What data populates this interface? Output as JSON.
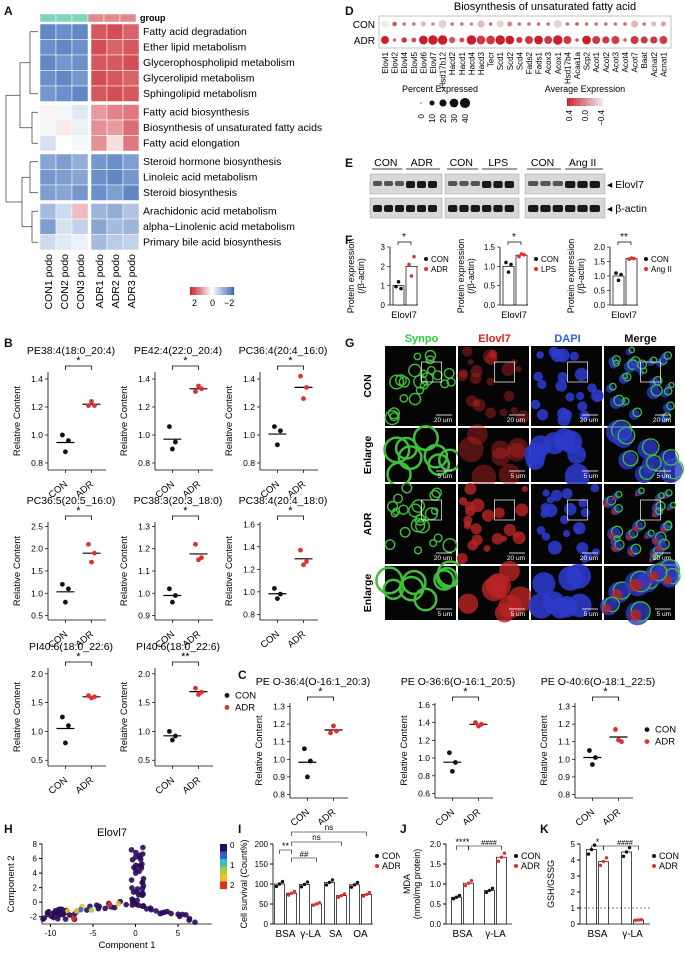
{
  "panel_letters": {
    "A": "A",
    "B": "B",
    "C": "C",
    "D": "D",
    "E": "E",
    "F": "F",
    "G": "G",
    "H": "H",
    "I": "I",
    "J": "J",
    "K": "K"
  },
  "panelA": {
    "group_label": "group",
    "columns": [
      "CON1 podo",
      "CON2 podo",
      "CON3 podo",
      "ADR1 podo",
      "ADR2 podo",
      "ADR3 podo"
    ],
    "rows": [
      "Fatty acid degradation",
      "Ether lipid metabolism",
      "Glycerophospholipid metabolism",
      "Glycerolipid metabolism",
      "Sphingolipid metabolism",
      "Fatty acid biosynthesis",
      "Biosynthesis of unsaturated fatty acids",
      "Fatty acid elongation",
      "Steroid hormone biosynthesis",
      "Linoleic acid metabolism",
      "Steroid biosynthesis",
      "Arachidonic acid metabolism",
      "alpha−Linolenic acid metabolism",
      "Primary bile acid biosynthesis"
    ],
    "values": [
      [
        -1.6,
        -1.5,
        -1.6,
        1.5,
        1.6,
        1.4
      ],
      [
        -1.5,
        -1.6,
        -1.5,
        1.6,
        1.4,
        1.5
      ],
      [
        -1.6,
        -1.4,
        -1.5,
        1.5,
        1.5,
        1.6
      ],
      [
        -1.5,
        -1.6,
        -1.4,
        1.6,
        1.5,
        1.4
      ],
      [
        -1.4,
        -1.5,
        -1.6,
        1.5,
        1.6,
        1.5
      ],
      [
        0.1,
        -0.1,
        -0.3,
        0.9,
        1.1,
        1.2
      ],
      [
        -0.1,
        0.2,
        -0.2,
        1.0,
        0.9,
        1.3
      ],
      [
        -0.4,
        0.0,
        -0.1,
        1.0,
        0.3,
        1.2
      ],
      [
        -1.2,
        -1.3,
        -1.1,
        -1.4,
        -1.5,
        -1.3
      ],
      [
        -1.4,
        -1.3,
        -1.2,
        -1.5,
        -1.6,
        -1.4
      ],
      [
        -1.3,
        -1.2,
        -1.4,
        -1.5,
        -1.3,
        -1.6
      ],
      [
        -0.9,
        -0.5,
        0.6,
        -1.0,
        -1.1,
        -0.8
      ],
      [
        -1.3,
        -0.4,
        -0.6,
        -1.2,
        -0.9,
        -1.0
      ],
      [
        -0.5,
        -0.3,
        -0.2,
        -0.9,
        -0.7,
        -0.6
      ]
    ],
    "legend": {
      "max": "2",
      "mid": "0",
      "min": "−2"
    },
    "colors": {
      "con_group": "#7fd6bd",
      "adr_group": "#e08b8b",
      "high": "#c8202a",
      "low": "#3a6ab5"
    }
  },
  "panelB": {
    "ylabel": "Relative Content",
    "categories": [
      "CON",
      "ADR"
    ],
    "legend": [
      "CON",
      "ADR"
    ],
    "plots": [
      {
        "title": "PE38:4(18:0_20:4)",
        "sig": "*",
        "yticks": [
          "0.8",
          "1.0",
          "1.2",
          "1.4"
        ],
        "ylim": [
          0.75,
          1.45
        ],
        "con": [
          1.0,
          0.88,
          0.96
        ],
        "adr": [
          1.21,
          1.24,
          1.21
        ]
      },
      {
        "title": "PE42:4(22:0_20:4)",
        "sig": "*",
        "yticks": [
          "0.8",
          "1.0",
          "1.2",
          "1.4"
        ],
        "ylim": [
          0.75,
          1.45
        ],
        "con": [
          1.06,
          0.9,
          0.95
        ],
        "adr": [
          1.31,
          1.35,
          1.33
        ]
      },
      {
        "title": "PC36:4(20:4_16:0)",
        "sig": "*",
        "yticks": [
          "0.8",
          "1.0",
          "1.2",
          "1.4"
        ],
        "ylim": [
          0.75,
          1.45
        ],
        "con": [
          1.06,
          0.93,
          1.03
        ],
        "adr": [
          1.42,
          1.26,
          1.34
        ]
      },
      {
        "title": "PC36:5(20:5_16:0)",
        "sig": "*",
        "yticks": [
          "0.5",
          "1.0",
          "1.5",
          "2.0",
          "2.5"
        ],
        "ylim": [
          0.4,
          2.6
        ],
        "con": [
          1.2,
          0.8,
          1.1
        ],
        "adr": [
          2.1,
          1.7,
          1.9
        ]
      },
      {
        "title": "PC38:3(20:3_18:0)",
        "sig": "*",
        "yticks": [
          "0.9",
          "1.0",
          "1.1",
          "1.2",
          "1.3"
        ],
        "ylim": [
          0.88,
          1.32
        ],
        "con": [
          1.02,
          0.96,
          0.99
        ],
        "adr": [
          1.22,
          1.15,
          1.16
        ]
      },
      {
        "title": "PC38:4(20:4_18:0)",
        "sig": "*",
        "yticks": [
          "0.8",
          "1.0",
          "1.2",
          "1.4",
          "1.6"
        ],
        "ylim": [
          0.75,
          1.62
        ],
        "con": [
          1.03,
          0.94,
          0.98
        ],
        "adr": [
          1.37,
          1.24,
          1.27
        ]
      },
      {
        "title": "PI40:6(18:0_22:6)",
        "sig": "*",
        "yticks": [
          "0.5",
          "1.0",
          "1.5",
          "2.0"
        ],
        "ylim": [
          0.4,
          2.1
        ],
        "con": [
          1.25,
          0.8,
          1.1
        ],
        "adr": [
          1.62,
          1.58,
          1.6
        ]
      },
      {
        "title": "PI40:6(18:0_22:6)",
        "sig": "**",
        "yticks": [
          "0.5",
          "1.0",
          "1.5",
          "2.0"
        ],
        "ylim": [
          0.4,
          2.1
        ],
        "con": [
          1.0,
          0.85,
          0.92
        ],
        "adr": [
          1.75,
          1.64,
          1.68
        ]
      }
    ]
  },
  "panelC": {
    "plots": [
      {
        "title": "PE O-36:4(O-16:1_20:3)",
        "sig": "*",
        "yticks": [
          "0.8",
          "0.9",
          "1.0",
          "1.1",
          "1.2",
          "1.3"
        ],
        "ylim": [
          0.78,
          1.32
        ],
        "con": [
          1.06,
          0.9,
          0.99
        ],
        "adr": [
          1.15,
          1.19,
          1.16
        ]
      },
      {
        "title": "PE O-36:6(O-16:1_20:5)",
        "sig": "*",
        "yticks": [
          "0.6",
          "0.8",
          "1.0",
          "1.2",
          "1.4",
          "1.6"
        ],
        "ylim": [
          0.55,
          1.62
        ],
        "con": [
          1.06,
          0.85,
          0.95
        ],
        "adr": [
          1.4,
          1.36,
          1.38
        ]
      },
      {
        "title": "PE O-40:6(O-18:1_22:5)",
        "sig": "*",
        "yticks": [
          "0.8",
          "0.9",
          "1.0",
          "1.1",
          "1.2",
          "1.3"
        ],
        "ylim": [
          0.78,
          1.32
        ],
        "con": [
          1.05,
          0.97,
          1.01
        ],
        "adr": [
          1.17,
          1.11,
          1.1
        ]
      }
    ]
  },
  "panelD": {
    "title": "Biosynthesis of unsaturated fatty acid",
    "rows": [
      "CON",
      "ADR"
    ],
    "genes": [
      "Elovl1",
      "Elovl2",
      "Elovl4",
      "Elovl5",
      "Elovl6",
      "Elovl7",
      "Hsd17b12",
      "Hacd2",
      "Hacd1",
      "Hacd4",
      "Hacd3",
      "Tecr",
      "Scd1",
      "Scd2",
      "Scd4",
      "Fads2",
      "Fads1",
      "Acox3",
      "Acox1",
      "Hsd17b4",
      "Acaa1a",
      "Scp2",
      "Acot1",
      "Acot2",
      "Acot3",
      "Acot4",
      "Acot7",
      "Baat",
      "Acnat2",
      "Acnat1"
    ],
    "size_con": [
      20,
      8,
      5,
      5,
      10,
      5,
      25,
      5,
      5,
      5,
      20,
      5,
      20,
      10,
      5,
      5,
      5,
      5,
      25,
      5,
      5,
      5,
      5,
      5,
      5,
      5,
      20,
      5,
      10,
      10
    ],
    "size_adr": [
      25,
      5,
      12,
      10,
      30,
      35,
      35,
      15,
      10,
      35,
      30,
      30,
      35,
      30,
      15,
      25,
      30,
      25,
      35,
      25,
      5,
      30,
      25,
      20,
      25,
      5,
      25,
      20,
      20,
      25
    ],
    "expr_con": [
      -0.4,
      0.2,
      0.1,
      0.1,
      -0.2,
      0.0,
      -0.3,
      0.1,
      0.1,
      0.0,
      -0.2,
      0.1,
      -0.3,
      0.0,
      0.1,
      0.1,
      0.1,
      0.1,
      -0.3,
      0.1,
      0.2,
      0.1,
      0.1,
      0.1,
      0.1,
      0.1,
      -0.2,
      0.1,
      -0.2,
      -0.1
    ],
    "expr_adr": [
      0.4,
      0.1,
      0.3,
      0.2,
      0.4,
      0.4,
      0.4,
      0.2,
      0.2,
      0.4,
      0.3,
      0.3,
      0.4,
      0.4,
      0.3,
      0.3,
      0.4,
      0.3,
      0.4,
      0.3,
      0.2,
      0.4,
      0.3,
      0.3,
      0.3,
      0.2,
      0.3,
      0.3,
      0.3,
      0.3
    ],
    "size_legend_title": "Percent Expressed",
    "size_legend": [
      "0",
      "10",
      "20",
      "30",
      "40"
    ],
    "color_legend_title": "Average Expression",
    "color_legend": [
      "0.4",
      "0.0",
      "−0.4"
    ]
  },
  "panelE": {
    "groups": [
      {
        "a": "CON",
        "b": "ADR"
      },
      {
        "a": "CON",
        "b": "LPS"
      },
      {
        "a": "CON",
        "b": "Ang II"
      }
    ],
    "bands": [
      "◂ Elovl7",
      "◂ β-actin"
    ]
  },
  "panelF": {
    "ylabel_line1": "Protein expression",
    "ylabel_line2": "(/β-actin)",
    "xlabel": "Elovl7",
    "plots": [
      {
        "legend": [
          "CON",
          "ADR"
        ],
        "sig": "*",
        "yticks": [
          "0",
          "1",
          "2",
          "3"
        ],
        "ylim": [
          0,
          3
        ],
        "con": [
          0.95,
          1.2,
          0.85
        ],
        "treat": [
          2.1,
          1.5,
          2.5
        ],
        "con_mean": 1.0,
        "treat_mean": 2.0
      },
      {
        "legend": [
          "CON",
          "LPS"
        ],
        "sig": "*",
        "yticks": [
          "0.0",
          "0.5",
          "1.0",
          "1.5"
        ],
        "ylim": [
          0,
          1.5
        ],
        "con": [
          1.1,
          0.85,
          1.05
        ],
        "treat": [
          1.25,
          1.32,
          1.3
        ],
        "con_mean": 1.0,
        "treat_mean": 1.29
      },
      {
        "legend": [
          "CON",
          "Ang II"
        ],
        "sig": "**",
        "yticks": [
          "0.0",
          "0.5",
          "1.0",
          "1.5",
          "2.0"
        ],
        "ylim": [
          0,
          2.0
        ],
        "con": [
          1.1,
          0.85,
          1.05
        ],
        "treat": [
          1.58,
          1.62,
          1.6
        ],
        "con_mean": 1.0,
        "treat_mean": 1.6
      }
    ]
  },
  "panelG": {
    "col_headers": [
      "Synpo",
      "Elovl7",
      "DAPI",
      "Merge"
    ],
    "header_colors": [
      "#2ecc40",
      "#e02020",
      "#3060e0",
      "#111111"
    ],
    "row_labels": [
      "CON",
      "Enlarge",
      "ADR",
      "Enlarge"
    ],
    "scale_labels": [
      "20 um",
      "5 um",
      "20 um",
      "5 um"
    ]
  },
  "panelH": {
    "title": "Elovl7",
    "xlabel": "Component 1",
    "ylabel": "Component 2",
    "xticks": [
      "-10",
      "-5",
      "0",
      "5"
    ],
    "yticks": [
      "-2",
      "0",
      "2",
      "4",
      "6",
      "8"
    ],
    "colorbar": [
      "0",
      "1",
      "2"
    ]
  },
  "panelI": {
    "ylabel": "Cell survival (Count%)",
    "categories": [
      "BSA",
      "γ-LA",
      "SA",
      "OA"
    ],
    "legend": [
      "CON",
      "ADR"
    ],
    "yticks": [
      "0",
      "50",
      "100",
      "150",
      "200"
    ],
    "ylim": [
      0,
      200
    ],
    "con": [
      100,
      99,
      104,
      98
    ],
    "adr": [
      77,
      50,
      71,
      74
    ],
    "sig": [
      "**",
      "##",
      "ns",
      "ns"
    ]
  },
  "panelJ": {
    "ylabel_line1": "MDA",
    "ylabel_line2": "(nmol/mg protein)",
    "categories": [
      "BSA",
      "γ-LA"
    ],
    "legend": [
      "CON",
      "ADR"
    ],
    "yticks": [
      "0.0",
      "0.5",
      "1.0",
      "1.5",
      "2.0"
    ],
    "ylim": [
      0,
      2.0
    ],
    "con": [
      0.67,
      0.84
    ],
    "adr": [
      1.02,
      1.67
    ],
    "sig": [
      "****",
      "####"
    ]
  },
  "panelK": {
    "ylabel": "GSH/GSSG",
    "categories": [
      "BSA",
      "γ-LA"
    ],
    "legend": [
      "CON",
      "ADR"
    ],
    "yticks": [
      "0",
      "1",
      "2",
      "3",
      "4",
      "5"
    ],
    "ylim": [
      0,
      5
    ],
    "con": [
      4.65,
      4.5
    ],
    "adr": [
      3.9,
      0.25
    ],
    "sig": [
      "*",
      "####"
    ]
  },
  "colors": {
    "con": "#111111",
    "adr": "#e03030"
  }
}
